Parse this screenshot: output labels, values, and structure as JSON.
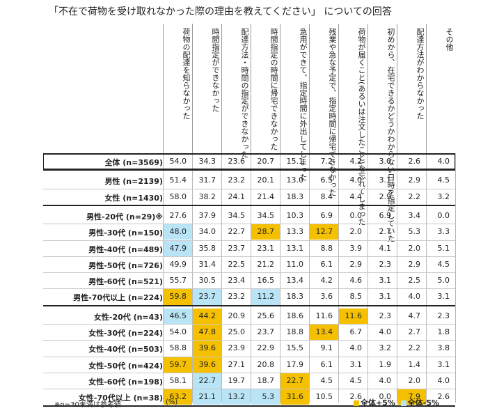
{
  "title": "「不在で荷物を受け取れなかった際の理由を教えてください」 についての回答",
  "columns": [
    "荷物の配達を知らなかった",
    "時間指定ができなかった",
    "配達方法・時間の指定ができなかった",
    "時間指定の時間に帰宅できなかった",
    "急用ができて、指定時間に外出してしまった",
    "残業や急な予定で、指定時間に帰宅できなかった",
    "荷物が届くこと(あるいは注文したこと)を忘れてしまった",
    "初めから、在宅できるかどうかわからない日時を指定していた",
    "配達方法がわからなかった",
    "その他"
  ],
  "rows": [
    {
      "label": "全体 (n=3569)",
      "values": [
        "54.0",
        "34.3",
        "23.6",
        "20.7",
        "15.1",
        "7.2",
        "4.2",
        "3.0",
        "2.6",
        "4.0"
      ],
      "hl": [
        0,
        0,
        0,
        0,
        0,
        0,
        0,
        0,
        0,
        0
      ]
    },
    {
      "label": "男性 (n=2139)",
      "values": [
        "51.4",
        "31.7",
        "23.2",
        "20.1",
        "13.0",
        "6.5",
        "4.0",
        "3.1",
        "2.9",
        "4.5"
      ],
      "hl": [
        0,
        0,
        0,
        0,
        0,
        0,
        0,
        0,
        0,
        0
      ]
    },
    {
      "label": "女性 (n=1430)",
      "values": [
        "58.0",
        "38.2",
        "24.1",
        "21.4",
        "18.3",
        "8.4",
        "4.4",
        "2.9",
        "2.2",
        "3.2"
      ],
      "hl": [
        0,
        0,
        0,
        0,
        0,
        0,
        0,
        0,
        0,
        0
      ]
    },
    {
      "label": "男性-20代 (n=29)※",
      "values": [
        "27.6",
        "37.9",
        "34.5",
        "34.5",
        "10.3",
        "6.9",
        "0.0",
        "6.9",
        "3.4",
        "0.0"
      ],
      "hl": [
        0,
        0,
        0,
        0,
        0,
        0,
        0,
        0,
        0,
        0
      ]
    },
    {
      "label": "男性-30代 (n=150)",
      "values": [
        "48.0",
        "34.0",
        "22.7",
        "28.7",
        "13.3",
        "12.7",
        "2.0",
        "2.7",
        "5.3",
        "3.3"
      ],
      "hl": [
        -1,
        0,
        0,
        1,
        0,
        1,
        0,
        0,
        0,
        0
      ]
    },
    {
      "label": "男性-40代 (n=489)",
      "values": [
        "47.9",
        "35.8",
        "23.7",
        "23.1",
        "13.1",
        "8.8",
        "3.9",
        "4.1",
        "2.0",
        "5.1"
      ],
      "hl": [
        -1,
        0,
        0,
        0,
        0,
        0,
        0,
        0,
        0,
        0
      ]
    },
    {
      "label": "男性-50代 (n=726)",
      "values": [
        "49.9",
        "31.4",
        "22.5",
        "21.2",
        "11.0",
        "6.1",
        "2.9",
        "2.3",
        "2.9",
        "4.5"
      ],
      "hl": [
        0,
        0,
        0,
        0,
        0,
        0,
        0,
        0,
        0,
        0
      ]
    },
    {
      "label": "男性-60代 (n=521)",
      "values": [
        "55.7",
        "30.5",
        "23.4",
        "16.5",
        "13.4",
        "4.2",
        "4.6",
        "3.1",
        "2.5",
        "5.0"
      ],
      "hl": [
        0,
        0,
        0,
        0,
        0,
        0,
        0,
        0,
        0,
        0
      ]
    },
    {
      "label": "男性-70代以上 (n=224)",
      "values": [
        "59.8",
        "23.7",
        "23.2",
        "11.2",
        "18.3",
        "3.6",
        "8.5",
        "3.1",
        "4.0",
        "3.1"
      ],
      "hl": [
        1,
        -1,
        0,
        -1,
        0,
        0,
        0,
        0,
        0,
        0
      ]
    },
    {
      "label": "女性-20代 (n=43)",
      "values": [
        "46.5",
        "44.2",
        "20.9",
        "25.6",
        "18.6",
        "11.6",
        "11.6",
        "2.3",
        "4.7",
        "2.3"
      ],
      "hl": [
        -1,
        1,
        0,
        0,
        0,
        0,
        1,
        0,
        0,
        0
      ]
    },
    {
      "label": "女性-30代 (n=224)",
      "values": [
        "54.0",
        "47.8",
        "25.0",
        "23.7",
        "18.8",
        "13.4",
        "6.7",
        "4.0",
        "2.7",
        "1.8"
      ],
      "hl": [
        0,
        1,
        0,
        0,
        0,
        1,
        0,
        0,
        0,
        0
      ]
    },
    {
      "label": "女性-40代 (n=503)",
      "values": [
        "58.8",
        "39.6",
        "23.9",
        "22.9",
        "15.5",
        "9.1",
        "4.0",
        "3.2",
        "2.2",
        "3.8"
      ],
      "hl": [
        0,
        1,
        0,
        0,
        0,
        0,
        0,
        0,
        0,
        0
      ]
    },
    {
      "label": "女性-50代 (n=424)",
      "values": [
        "59.7",
        "39.6",
        "27.1",
        "20.8",
        "17.9",
        "6.1",
        "3.1",
        "1.9",
        "1.4",
        "3.1"
      ],
      "hl": [
        1,
        1,
        0,
        0,
        0,
        0,
        0,
        0,
        0,
        0
      ]
    },
    {
      "label": "女性-60代 (n=198)",
      "values": [
        "58.1",
        "22.7",
        "19.7",
        "18.7",
        "22.7",
        "4.5",
        "4.5",
        "4.0",
        "2.0",
        "4.0"
      ],
      "hl": [
        0,
        -1,
        0,
        0,
        1,
        0,
        0,
        0,
        0,
        0
      ]
    },
    {
      "label": "女性-70代以上 (n=38)",
      "values": [
        "63.2",
        "21.1",
        "13.2",
        "5.3",
        "31.6",
        "10.5",
        "2.6",
        "0.0",
        "7.9",
        "2.6"
      ],
      "hl": [
        1,
        -1,
        -1,
        -1,
        1,
        0,
        0,
        0,
        1,
        0
      ]
    }
  ],
  "footnote": "※n=30未満は参考値",
  "unit": "(%)",
  "legend": {
    "up": "全体+5%",
    "down": "全体-5%",
    "up_color": "#f5c000",
    "down_color": "#b8e4f6"
  }
}
